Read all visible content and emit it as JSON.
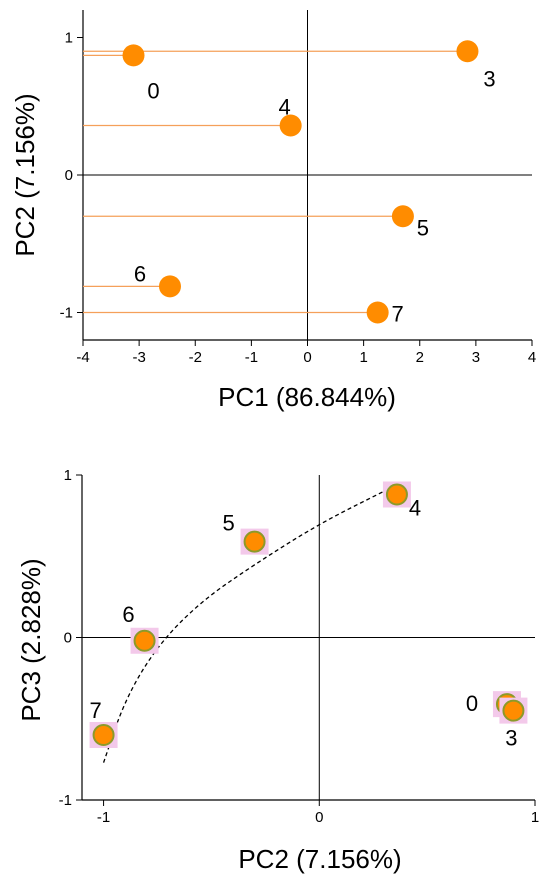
{
  "chart_data": [
    {
      "type": "scatter",
      "xlabel": "PC1 (86.844%)",
      "ylabel": "PC2 (7.156%)",
      "xlim": [
        -4,
        4
      ],
      "ylim": [
        -1.2,
        1.2
      ],
      "xticks": [
        -4,
        -3,
        -2,
        -1,
        0,
        1,
        2,
        3,
        4
      ],
      "yticks": [
        -1,
        0,
        1
      ],
      "point_color": "#ff8c00",
      "stem_color": "#f5a05a",
      "grid": false,
      "points": [
        {
          "label": "0",
          "x": -3.1,
          "y": 0.87
        },
        {
          "label": "4",
          "x": -0.3,
          "y": 0.36
        },
        {
          "label": "3",
          "x": 2.85,
          "y": 0.9
        },
        {
          "label": "5",
          "x": 1.7,
          "y": -0.3
        },
        {
          "label": "6",
          "x": -2.45,
          "y": -0.81
        },
        {
          "label": "7",
          "x": 1.25,
          "y": -1.0
        }
      ]
    },
    {
      "type": "scatter",
      "xlabel": "PC2 (7.156%)",
      "ylabel": "PC3 (2.828%)",
      "xlim": [
        -1.1,
        1.0
      ],
      "ylim": [
        -1.0,
        1.0
      ],
      "xticks": [
        -1,
        0,
        1
      ],
      "yticks": [
        -1,
        0,
        1
      ],
      "point_color": "#ff8c00",
      "point_edge_color": "#8c9a2a",
      "halo_color": "#f3c9ea",
      "grid": false,
      "points": [
        {
          "label": "7",
          "x": -1.0,
          "y": -0.6
        },
        {
          "label": "6",
          "x": -0.81,
          "y": -0.02
        },
        {
          "label": "5",
          "x": -0.3,
          "y": 0.59
        },
        {
          "label": "4",
          "x": 0.36,
          "y": 0.88
        },
        {
          "label": "0",
          "x": 0.87,
          "y": -0.41
        },
        {
          "label": "3",
          "x": 0.9,
          "y": -0.45
        }
      ],
      "trend_curve": [
        {
          "x": -1.0,
          "y": -0.77
        },
        {
          "x": -0.9,
          "y": -0.38
        },
        {
          "x": -0.75,
          "y": -0.05
        },
        {
          "x": -0.55,
          "y": 0.22
        },
        {
          "x": -0.3,
          "y": 0.45
        },
        {
          "x": 0.0,
          "y": 0.7
        },
        {
          "x": 0.3,
          "y": 0.9
        }
      ]
    }
  ]
}
